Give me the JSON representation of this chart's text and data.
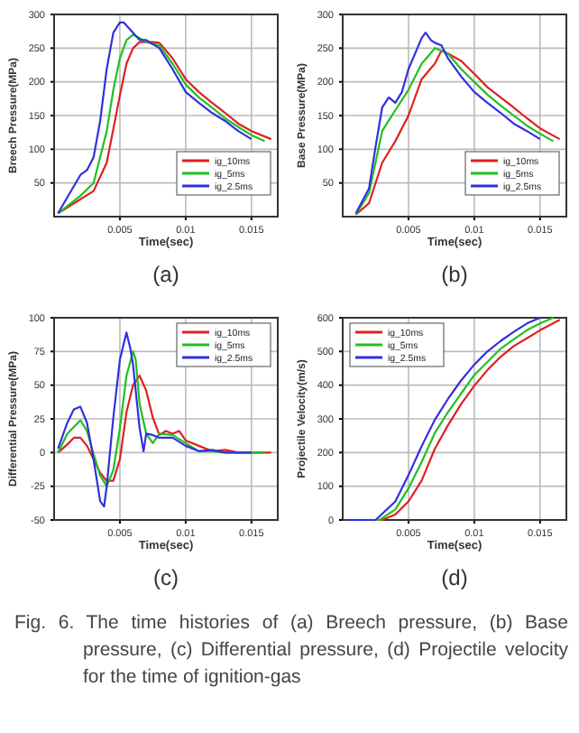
{
  "chart_data": [
    {
      "type": "line",
      "title": "(a)",
      "xlabel": "Time(sec)",
      "ylabel": "Breech Pressure(MPa)",
      "xlim": [
        0,
        0.017
      ],
      "xticks": [
        0.005,
        0.01,
        0.015
      ],
      "ylim": [
        0,
        300
      ],
      "yticks": [
        50,
        100,
        150,
        200,
        250,
        300
      ],
      "grid": true,
      "legend": "bottom right",
      "line_style": "solid",
      "series": [
        {
          "name": "ig_10ms",
          "color": "#e02020",
          "x": [
            0.0003,
            0.003,
            0.004,
            0.005,
            0.0055,
            0.006,
            0.0065,
            0.0075,
            0.008,
            0.009,
            0.01,
            0.011,
            0.012,
            0.013,
            0.014,
            0.015,
            0.0165
          ],
          "values": [
            5,
            38,
            80,
            180,
            227,
            250,
            259,
            259,
            258,
            235,
            204,
            185,
            169,
            154,
            138,
            127,
            115
          ]
        },
        {
          "name": "ig_5ms",
          "color": "#20c020",
          "x": [
            0.0003,
            0.002,
            0.003,
            0.004,
            0.0045,
            0.005,
            0.0055,
            0.006,
            0.0065,
            0.007,
            0.008,
            0.009,
            0.01,
            0.011,
            0.012,
            0.013,
            0.014,
            0.015,
            0.016
          ],
          "values": [
            5,
            31,
            50,
            127,
            188,
            235,
            262,
            270,
            265,
            259,
            254,
            227,
            196,
            177,
            162,
            146,
            133,
            121,
            112
          ]
        },
        {
          "name": "ig_2.5ms",
          "color": "#3030e0",
          "x": [
            0.0003,
            0.002,
            0.0025,
            0.003,
            0.0035,
            0.004,
            0.0045,
            0.005,
            0.0053,
            0.006,
            0.0065,
            0.007,
            0.008,
            0.009,
            0.01,
            0.011,
            0.012,
            0.013,
            0.014,
            0.015
          ],
          "values": [
            5,
            62,
            69,
            88,
            142,
            219,
            273,
            288,
            288,
            273,
            262,
            262,
            250,
            219,
            185,
            169,
            154,
            142,
            127,
            115
          ]
        }
      ]
    },
    {
      "type": "line",
      "title": "(b)",
      "xlabel": "Time(sec)",
      "ylabel": "Base Pressure(MPa)",
      "xlim": [
        0,
        0.017
      ],
      "xticks": [
        0.005,
        0.01,
        0.015
      ],
      "ylim": [
        0,
        300
      ],
      "yticks": [
        50,
        100,
        150,
        200,
        250,
        300
      ],
      "grid": true,
      "legend": "bottom right",
      "line_style": "solid",
      "series": [
        {
          "name": "ig_10ms",
          "color": "#e02020",
          "x": [
            0.001,
            0.002,
            0.003,
            0.004,
            0.005,
            0.006,
            0.007,
            0.0075,
            0.008,
            0.009,
            0.01,
            0.011,
            0.012,
            0.013,
            0.014,
            0.015,
            0.0165
          ],
          "values": [
            3,
            20,
            80,
            112,
            150,
            204,
            227,
            246,
            242,
            231,
            212,
            192,
            177,
            162,
            146,
            131,
            115
          ]
        },
        {
          "name": "ig_5ms",
          "color": "#20c020",
          "x": [
            0.001,
            0.002,
            0.003,
            0.004,
            0.005,
            0.006,
            0.0065,
            0.007,
            0.008,
            0.009,
            0.01,
            0.011,
            0.012,
            0.013,
            0.014,
            0.015,
            0.016
          ],
          "values": [
            3,
            35,
            127,
            158,
            188,
            227,
            238,
            250,
            242,
            219,
            200,
            181,
            165,
            150,
            135,
            123,
            112
          ]
        },
        {
          "name": "ig_2.5ms",
          "color": "#3030e0",
          "x": [
            0.001,
            0.002,
            0.0025,
            0.003,
            0.0035,
            0.004,
            0.0045,
            0.005,
            0.0055,
            0.006,
            0.0063,
            0.0067,
            0.007,
            0.0075,
            0.008,
            0.009,
            0.01,
            0.011,
            0.012,
            0.013,
            0.014,
            0.015
          ],
          "values": [
            5,
            42,
            104,
            162,
            177,
            169,
            185,
            219,
            242,
            265,
            273,
            262,
            258,
            254,
            235,
            208,
            185,
            169,
            154,
            138,
            127,
            115
          ]
        }
      ]
    },
    {
      "type": "line",
      "title": "(c)",
      "xlabel": "Time(sec)",
      "ylabel": "Differential Pressure(MPa)",
      "xlim": [
        0,
        0.017
      ],
      "xticks": [
        0.005,
        0.01,
        0.015
      ],
      "ylim": [
        -50,
        100
      ],
      "yticks": [
        -50,
        -25,
        0,
        25,
        50,
        75,
        100
      ],
      "grid": true,
      "legend": "top right",
      "line_style": "solid",
      "series": [
        {
          "name": "ig_10ms",
          "color": "#e02020",
          "x": [
            0.0003,
            0.001,
            0.0015,
            0.002,
            0.0025,
            0.003,
            0.0035,
            0.004,
            0.0045,
            0.005,
            0.0055,
            0.006,
            0.0065,
            0.007,
            0.0075,
            0.008,
            0.0085,
            0.009,
            0.0095,
            0.01,
            0.011,
            0.012,
            0.013,
            0.014,
            0.015,
            0.0165
          ],
          "values": [
            0,
            6,
            11,
            11,
            5,
            -5,
            -15,
            -21,
            -21,
            -5,
            30,
            50,
            57,
            46,
            26,
            13,
            16,
            14,
            16,
            9,
            5,
            1,
            2,
            0,
            0,
            0
          ]
        },
        {
          "name": "ig_5ms",
          "color": "#20c020",
          "x": [
            0.0003,
            0.001,
            0.002,
            0.0025,
            0.003,
            0.0035,
            0.004,
            0.0045,
            0.005,
            0.0055,
            0.006,
            0.0062,
            0.0065,
            0.007,
            0.0075,
            0.008,
            0.009,
            0.01,
            0.011,
            0.012,
            0.013,
            0.016
          ],
          "values": [
            0,
            14,
            24,
            16,
            -1,
            -17,
            -25,
            -13,
            18,
            57,
            75,
            69,
            36,
            14,
            7,
            14,
            13,
            7,
            1,
            1,
            0,
            0
          ]
        },
        {
          "name": "ig_2.5ms",
          "color": "#3030e0",
          "x": [
            0.0003,
            0.001,
            0.0015,
            0.002,
            0.0025,
            0.003,
            0.0035,
            0.0038,
            0.004,
            0.0045,
            0.005,
            0.0055,
            0.0058,
            0.006,
            0.0065,
            0.0068,
            0.007,
            0.0075,
            0.008,
            0.009,
            0.01,
            0.011,
            0.012,
            0.013,
            0.015
          ],
          "values": [
            3,
            22,
            32,
            34,
            22,
            -5,
            -36,
            -40,
            -25,
            26,
            69,
            89,
            77,
            65,
            18,
            1,
            14,
            13,
            11,
            11,
            5,
            1,
            2,
            0,
            0
          ]
        }
      ]
    },
    {
      "type": "line",
      "title": "(d)",
      "xlabel": "Time(sec)",
      "ylabel": "Projectile Velocity(m/s)",
      "xlim": [
        0,
        0.017
      ],
      "xticks": [
        0.005,
        0.01,
        0.015
      ],
      "ylim": [
        0,
        600
      ],
      "yticks": [
        0,
        100,
        200,
        300,
        400,
        500,
        600
      ],
      "grid": true,
      "legend": "top left",
      "line_style": "solid",
      "annotations": [
        "Fig. 6. The time histories of (a) Breech pressure, (b) Base pressure, (c) Differential pressure, (d) Projectile velocity for the time of ignition-gas"
      ],
      "series": [
        {
          "name": "ig_10ms",
          "color": "#e02020",
          "x": [
            0.0003,
            0.003,
            0.004,
            0.005,
            0.006,
            0.007,
            0.008,
            0.009,
            0.01,
            0.011,
            0.012,
            0.013,
            0.014,
            0.015,
            0.0165
          ],
          "values": [
            0,
            0,
            16,
            55,
            117,
            211,
            281,
            344,
            398,
            445,
            484,
            516,
            539,
            563,
            594
          ]
        },
        {
          "name": "ig_5ms",
          "color": "#20c020",
          "x": [
            0.0003,
            0.0028,
            0.004,
            0.005,
            0.006,
            0.007,
            0.008,
            0.009,
            0.01,
            0.011,
            0.012,
            0.013,
            0.014,
            0.015,
            0.016
          ],
          "values": [
            0,
            0,
            31,
            94,
            172,
            258,
            320,
            375,
            430,
            469,
            508,
            536,
            563,
            583,
            600
          ]
        },
        {
          "name": "ig_2.5ms",
          "color": "#3030e0",
          "x": [
            0.0003,
            0.0025,
            0.004,
            0.005,
            0.006,
            0.007,
            0.008,
            0.009,
            0.01,
            0.011,
            0.012,
            0.013,
            0.014,
            0.015
          ],
          "values": [
            0,
            0,
            55,
            133,
            219,
            297,
            359,
            414,
            461,
            500,
            531,
            558,
            583,
            600
          ]
        }
      ]
    }
  ]
}
